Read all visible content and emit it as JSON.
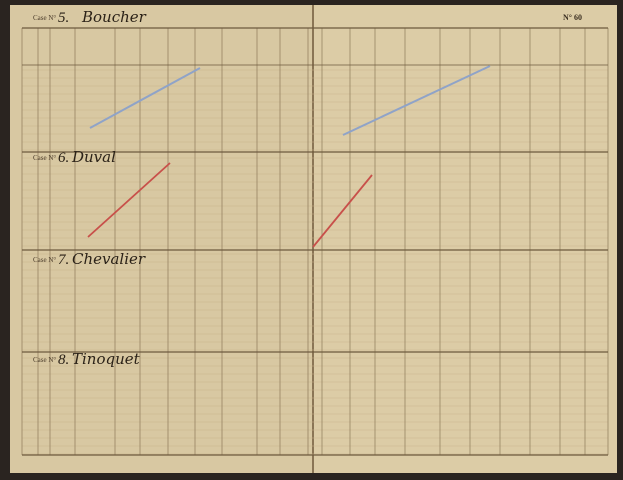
{
  "page_number": "N° 60",
  "cases": [
    {
      "label": "Case N°",
      "number": "5.",
      "name": "Boucher"
    },
    {
      "label": "Case N°",
      "number": "6.",
      "name": "Duval"
    },
    {
      "label": "Case N°",
      "number": "7.",
      "name": "Chevalier"
    },
    {
      "label": "Case N°",
      "number": "8.",
      "name": "Tinoquet"
    }
  ]
}
